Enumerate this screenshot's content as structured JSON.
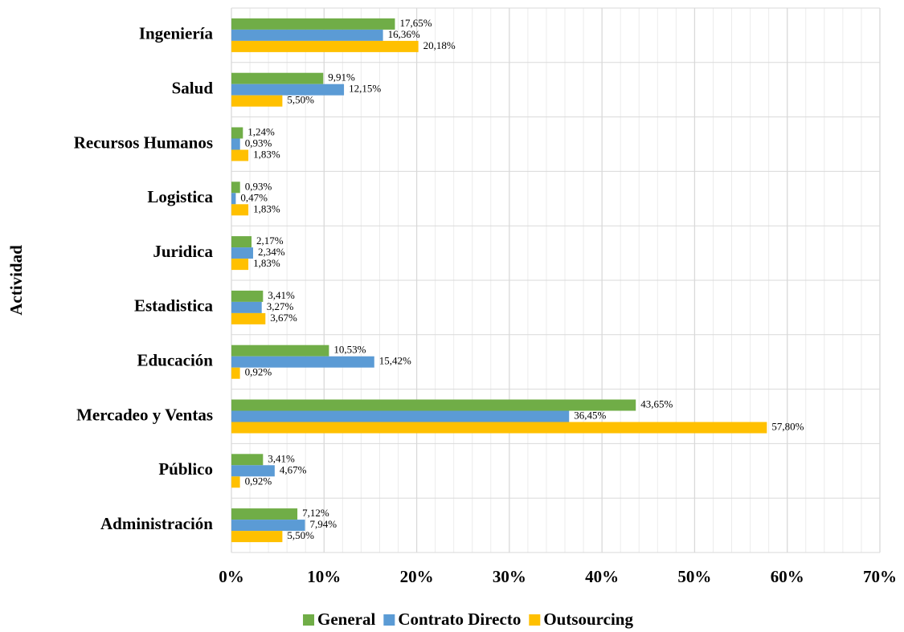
{
  "chart_data": {
    "type": "hbar",
    "y_label": "Actividad",
    "categories": [
      "Ingeniería",
      "Salud",
      "Recursos Humanos",
      "Logistica",
      "Juridica",
      "Estadistica",
      "Educación",
      "Mercadeo y Ventas",
      "Público",
      "Administración"
    ],
    "series": [
      {
        "name": "General",
        "color": "#70ad47",
        "values": [
          17.65,
          9.91,
          1.24,
          0.93,
          2.17,
          3.41,
          10.53,
          43.65,
          3.41,
          7.12
        ],
        "value_labels": [
          "17,65%",
          "9,91%",
          "1,24%",
          "0,93%",
          "2,17%",
          "3,41%",
          "10,53%",
          "43,65%",
          "3,41%",
          "7,12%"
        ]
      },
      {
        "name": "Contrato Directo",
        "color": "#5b9bd5",
        "values": [
          16.36,
          12.15,
          0.93,
          0.47,
          2.34,
          3.27,
          15.42,
          36.45,
          4.67,
          7.94
        ],
        "value_labels": [
          "16,36%",
          "12,15%",
          "0,93%",
          "0,47%",
          "2,34%",
          "3,27%",
          "15,42%",
          "36,45%",
          "4,67%",
          "7,94%"
        ]
      },
      {
        "name": "Outsourcing",
        "color": "#ffc000",
        "values": [
          20.18,
          5.5,
          1.83,
          1.83,
          1.83,
          3.67,
          0.92,
          57.8,
          0.92,
          5.5
        ],
        "value_labels": [
          "20,18%",
          "5,50%",
          "1,83%",
          "1,83%",
          "1,83%",
          "3,67%",
          "0,92%",
          "57,80%",
          "0,92%",
          "5,50%"
        ]
      }
    ],
    "xlim": [
      0,
      70
    ],
    "xticks": [
      {
        "value": 0,
        "label": "0%"
      },
      {
        "value": 10,
        "label": "10%"
      },
      {
        "value": 20,
        "label": "20%"
      },
      {
        "value": 30,
        "label": "30%"
      },
      {
        "value": 40,
        "label": "40%"
      },
      {
        "value": 50,
        "label": "50%"
      },
      {
        "value": 60,
        "label": "60%"
      },
      {
        "value": 70,
        "label": "70%"
      }
    ],
    "xminor_ticks": [
      2,
      4,
      6,
      8,
      12,
      14,
      16,
      18,
      22,
      24,
      26,
      28,
      32,
      34,
      36,
      38,
      42,
      44,
      46,
      48,
      52,
      54,
      56,
      58,
      62,
      64,
      66,
      68
    ],
    "grid": true,
    "legend": "bottom"
  }
}
